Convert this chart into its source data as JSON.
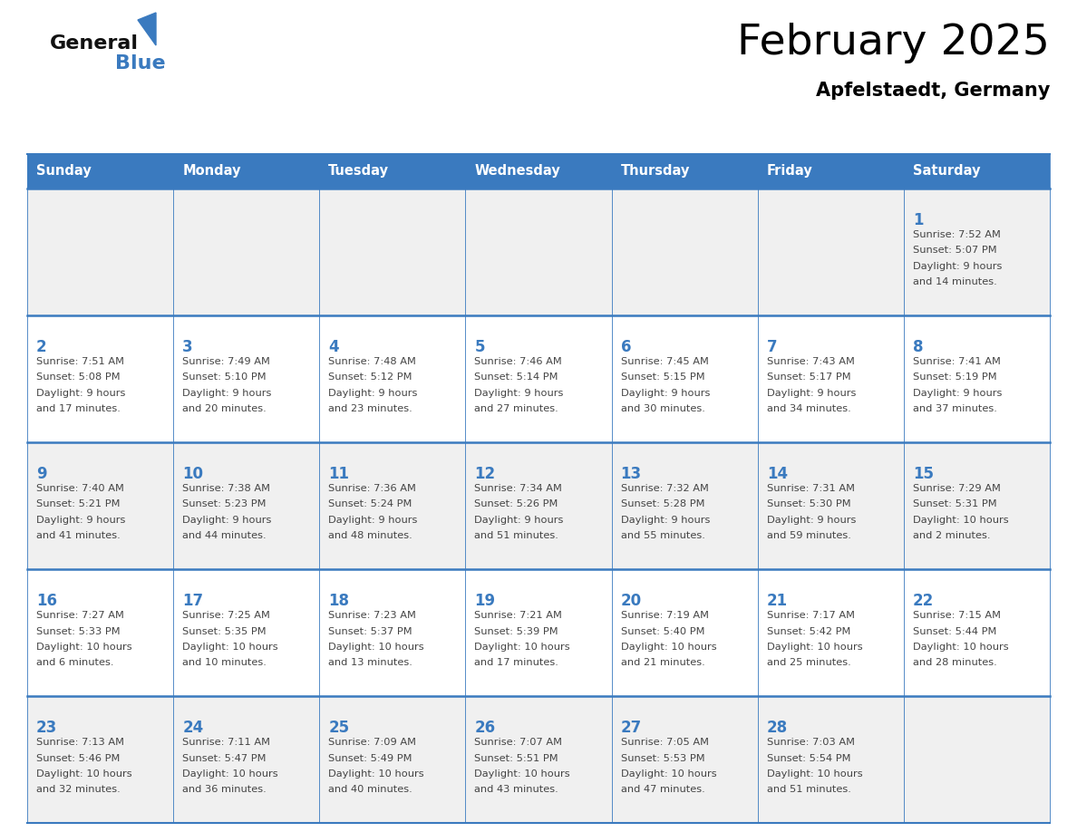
{
  "title": "February 2025",
  "subtitle": "Apfelstaedt, Germany",
  "header_color": "#3a7abf",
  "header_text_color": "#ffffff",
  "day_names": [
    "Sunday",
    "Monday",
    "Tuesday",
    "Wednesday",
    "Thursday",
    "Friday",
    "Saturday"
  ],
  "bg_color": "#ffffff",
  "alt_row_color": "#f0f0f0",
  "line_color": "#3a7abf",
  "day_num_color": "#3a7abf",
  "cell_text_color": "#444444",
  "title_color": "#000000",
  "subtitle_color": "#000000",
  "logo_general_color": "#111111",
  "logo_blue_color": "#3a7abf",
  "calendar_data": [
    [
      null,
      null,
      null,
      null,
      null,
      null,
      {
        "day": 1,
        "sunrise": "7:52 AM",
        "sunset": "5:07 PM",
        "daylight": "9 hours and 14 minutes"
      }
    ],
    [
      {
        "day": 2,
        "sunrise": "7:51 AM",
        "sunset": "5:08 PM",
        "daylight": "9 hours and 17 minutes"
      },
      {
        "day": 3,
        "sunrise": "7:49 AM",
        "sunset": "5:10 PM",
        "daylight": "9 hours and 20 minutes"
      },
      {
        "day": 4,
        "sunrise": "7:48 AM",
        "sunset": "5:12 PM",
        "daylight": "9 hours and 23 minutes"
      },
      {
        "day": 5,
        "sunrise": "7:46 AM",
        "sunset": "5:14 PM",
        "daylight": "9 hours and 27 minutes"
      },
      {
        "day": 6,
        "sunrise": "7:45 AM",
        "sunset": "5:15 PM",
        "daylight": "9 hours and 30 minutes"
      },
      {
        "day": 7,
        "sunrise": "7:43 AM",
        "sunset": "5:17 PM",
        "daylight": "9 hours and 34 minutes"
      },
      {
        "day": 8,
        "sunrise": "7:41 AM",
        "sunset": "5:19 PM",
        "daylight": "9 hours and 37 minutes"
      }
    ],
    [
      {
        "day": 9,
        "sunrise": "7:40 AM",
        "sunset": "5:21 PM",
        "daylight": "9 hours and 41 minutes"
      },
      {
        "day": 10,
        "sunrise": "7:38 AM",
        "sunset": "5:23 PM",
        "daylight": "9 hours and 44 minutes"
      },
      {
        "day": 11,
        "sunrise": "7:36 AM",
        "sunset": "5:24 PM",
        "daylight": "9 hours and 48 minutes"
      },
      {
        "day": 12,
        "sunrise": "7:34 AM",
        "sunset": "5:26 PM",
        "daylight": "9 hours and 51 minutes"
      },
      {
        "day": 13,
        "sunrise": "7:32 AM",
        "sunset": "5:28 PM",
        "daylight": "9 hours and 55 minutes"
      },
      {
        "day": 14,
        "sunrise": "7:31 AM",
        "sunset": "5:30 PM",
        "daylight": "9 hours and 59 minutes"
      },
      {
        "day": 15,
        "sunrise": "7:29 AM",
        "sunset": "5:31 PM",
        "daylight": "10 hours and 2 minutes"
      }
    ],
    [
      {
        "day": 16,
        "sunrise": "7:27 AM",
        "sunset": "5:33 PM",
        "daylight": "10 hours and 6 minutes"
      },
      {
        "day": 17,
        "sunrise": "7:25 AM",
        "sunset": "5:35 PM",
        "daylight": "10 hours and 10 minutes"
      },
      {
        "day": 18,
        "sunrise": "7:23 AM",
        "sunset": "5:37 PM",
        "daylight": "10 hours and 13 minutes"
      },
      {
        "day": 19,
        "sunrise": "7:21 AM",
        "sunset": "5:39 PM",
        "daylight": "10 hours and 17 minutes"
      },
      {
        "day": 20,
        "sunrise": "7:19 AM",
        "sunset": "5:40 PM",
        "daylight": "10 hours and 21 minutes"
      },
      {
        "day": 21,
        "sunrise": "7:17 AM",
        "sunset": "5:42 PM",
        "daylight": "10 hours and 25 minutes"
      },
      {
        "day": 22,
        "sunrise": "7:15 AM",
        "sunset": "5:44 PM",
        "daylight": "10 hours and 28 minutes"
      }
    ],
    [
      {
        "day": 23,
        "sunrise": "7:13 AM",
        "sunset": "5:46 PM",
        "daylight": "10 hours and 32 minutes"
      },
      {
        "day": 24,
        "sunrise": "7:11 AM",
        "sunset": "5:47 PM",
        "daylight": "10 hours and 36 minutes"
      },
      {
        "day": 25,
        "sunrise": "7:09 AM",
        "sunset": "5:49 PM",
        "daylight": "10 hours and 40 minutes"
      },
      {
        "day": 26,
        "sunrise": "7:07 AM",
        "sunset": "5:51 PM",
        "daylight": "10 hours and 43 minutes"
      },
      {
        "day": 27,
        "sunrise": "7:05 AM",
        "sunset": "5:53 PM",
        "daylight": "10 hours and 47 minutes"
      },
      {
        "day": 28,
        "sunrise": "7:03 AM",
        "sunset": "5:54 PM",
        "daylight": "10 hours and 51 minutes"
      },
      null
    ]
  ]
}
